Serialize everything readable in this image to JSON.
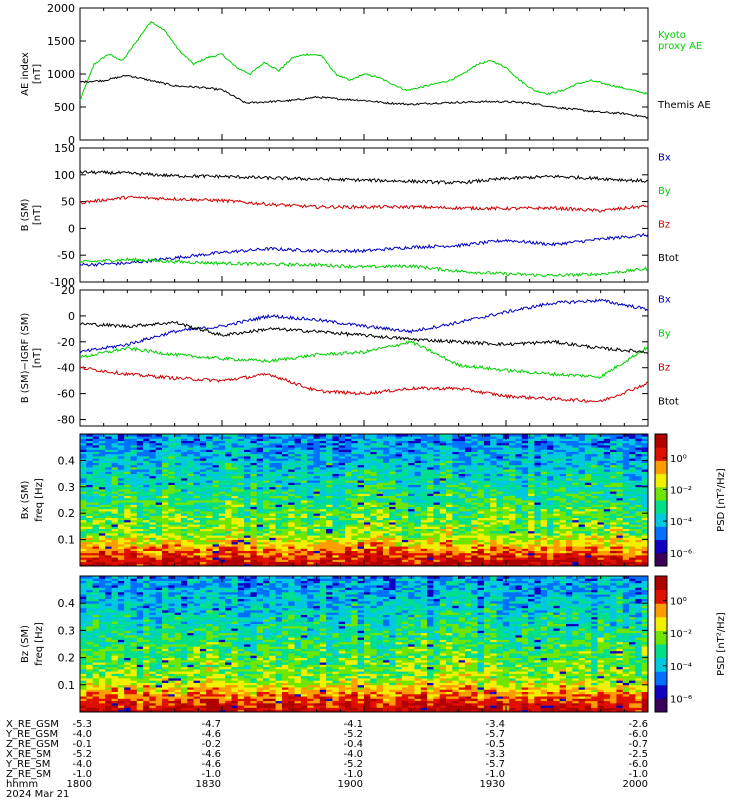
{
  "chart_data": [
    {
      "type": "line",
      "ylabel": "AE index",
      "yunit": "[nT]",
      "ylim": [
        0,
        2000
      ],
      "yticks": [
        "0",
        "500",
        "1000",
        "1500",
        "2000"
      ],
      "series": [
        {
          "name": "Kyoto proxy AE",
          "name_lines": [
            "Kyoto",
            "proxy AE"
          ],
          "color": "#00d000",
          "x": [
            0,
            3,
            6,
            9,
            12,
            15,
            18,
            21,
            24,
            27,
            30,
            33,
            36,
            39,
            42,
            45,
            48,
            51,
            54,
            57,
            60,
            63,
            66,
            69,
            72,
            75,
            78,
            81,
            84,
            87,
            90,
            93,
            96,
            99,
            102,
            105,
            108,
            111,
            114,
            117,
            120
          ],
          "values": [
            600,
            1150,
            1300,
            1200,
            1500,
            1800,
            1650,
            1350,
            1150,
            1250,
            1300,
            1100,
            1000,
            1180,
            1050,
            1250,
            1300,
            1280,
            1000,
            900,
            1000,
            950,
            850,
            750,
            800,
            850,
            900,
            1000,
            1150,
            1200,
            1100,
            900,
            750,
            700,
            750,
            850,
            900,
            850,
            800,
            750,
            700
          ]
        },
        {
          "name": "Themis AE",
          "name_lines": [
            "Themis AE"
          ],
          "color": "#000000",
          "x": [
            0,
            5,
            10,
            15,
            20,
            25,
            30,
            35,
            40,
            45,
            50,
            55,
            60,
            65,
            70,
            75,
            80,
            85,
            90,
            95,
            100,
            105,
            110,
            115,
            120
          ],
          "values": [
            880,
            900,
            980,
            900,
            820,
            800,
            760,
            560,
            580,
            600,
            650,
            620,
            600,
            560,
            540,
            560,
            570,
            580,
            580,
            560,
            500,
            460,
            420,
            400,
            340
          ]
        }
      ]
    },
    {
      "type": "line",
      "ylabel": "B (SM)",
      "yunit": "[nT]",
      "ylim": [
        -100,
        150
      ],
      "yticks": [
        "-100",
        "-50",
        "0",
        "50",
        "100",
        "150"
      ],
      "series": [
        {
          "name": "Bx",
          "color": "#0000c0",
          "x": [
            0,
            10,
            20,
            30,
            40,
            50,
            60,
            70,
            80,
            90,
            100,
            110,
            120
          ],
          "values": [
            -68,
            -65,
            -55,
            -45,
            -38,
            -42,
            -42,
            -35,
            -32,
            -22,
            -30,
            -20,
            -12
          ]
        },
        {
          "name": "By",
          "color": "#00d000",
          "x": [
            0,
            10,
            20,
            30,
            40,
            50,
            60,
            70,
            80,
            90,
            100,
            110,
            120
          ],
          "values": [
            -63,
            -58,
            -62,
            -65,
            -67,
            -68,
            -72,
            -70,
            -80,
            -85,
            -88,
            -85,
            -75
          ]
        },
        {
          "name": "Bz",
          "color": "#d00000",
          "x": [
            0,
            10,
            20,
            30,
            40,
            50,
            60,
            70,
            80,
            90,
            100,
            110,
            120
          ],
          "values": [
            48,
            58,
            55,
            52,
            45,
            40,
            40,
            40,
            38,
            37,
            38,
            33,
            42
          ]
        },
        {
          "name": "Btot",
          "color": "#000000",
          "x": [
            0,
            10,
            20,
            30,
            40,
            50,
            60,
            70,
            80,
            90,
            100,
            110,
            120
          ],
          "values": [
            105,
            103,
            98,
            97,
            94,
            92,
            90,
            88,
            85,
            93,
            97,
            93,
            88
          ]
        }
      ]
    },
    {
      "type": "line",
      "ylabel": "B (SM)−IGRF (SM)",
      "yunit": "[nT]",
      "ylim": [
        -85,
        20
      ],
      "yticks": [
        "-80",
        "-60",
        "-40",
        "-20",
        "0",
        "20"
      ],
      "series": [
        {
          "name": "Bx",
          "color": "#0000c0",
          "x": [
            0,
            10,
            20,
            30,
            40,
            50,
            60,
            70,
            80,
            90,
            100,
            110,
            120
          ],
          "values": [
            -28,
            -22,
            -12,
            -8,
            0,
            -3,
            -8,
            -12,
            -5,
            3,
            10,
            12,
            5
          ]
        },
        {
          "name": "By",
          "color": "#00d000",
          "x": [
            0,
            10,
            20,
            30,
            40,
            50,
            60,
            70,
            80,
            90,
            100,
            110,
            120
          ],
          "values": [
            -32,
            -25,
            -30,
            -33,
            -35,
            -30,
            -28,
            -20,
            -38,
            -42,
            -45,
            -47,
            -24
          ]
        },
        {
          "name": "Bz",
          "color": "#d00000",
          "x": [
            0,
            10,
            20,
            30,
            40,
            50,
            60,
            70,
            80,
            90,
            100,
            110,
            120
          ],
          "values": [
            -40,
            -45,
            -48,
            -50,
            -45,
            -58,
            -60,
            -56,
            -56,
            -62,
            -64,
            -66,
            -52
          ]
        },
        {
          "name": "Btot",
          "color": "#000000",
          "x": [
            0,
            10,
            20,
            30,
            40,
            50,
            60,
            70,
            80,
            90,
            100,
            110,
            120
          ],
          "values": [
            -6,
            -8,
            -5,
            -15,
            -10,
            -12,
            -15,
            -18,
            -20,
            -22,
            -20,
            -25,
            -28
          ]
        }
      ]
    },
    {
      "type": "heatmap",
      "ylabel": "Bx (SM)",
      "y2label": "freq [Hz]",
      "ylim": [
        0,
        0.5
      ],
      "yticks": [
        "0.1",
        "0.2",
        "0.3",
        "0.4"
      ],
      "colorbar": {
        "label": "PSD [nT²/Hz]",
        "ticks": [
          "10⁰",
          "10⁻²",
          "10⁻⁴",
          "10⁻⁶"
        ]
      },
      "colormap": [
        "#3a005a",
        "#1000c0",
        "#0070ff",
        "#00c8e0",
        "#00e08a",
        "#6ee600",
        "#f0f000",
        "#ff9c00",
        "#e01000",
        "#b00000"
      ]
    },
    {
      "type": "heatmap",
      "ylabel": "Bz (SM)",
      "y2label": "freq [Hz]",
      "ylim": [
        0,
        0.5
      ],
      "yticks": [
        "0.1",
        "0.2",
        "0.3",
        "0.4"
      ],
      "colorbar": {
        "label": "PSD [nT²/Hz]",
        "ticks": [
          "10⁰",
          "10⁻²",
          "10⁻⁴",
          "10⁻⁶"
        ]
      },
      "colormap": [
        "#3a005a",
        "#1000c0",
        "#0070ff",
        "#00c8e0",
        "#00e08a",
        "#6ee600",
        "#f0f000",
        "#ff9c00",
        "#e01000",
        "#b00000"
      ]
    }
  ],
  "ephemeris": {
    "rows": [
      {
        "label": "X_RE_GSM",
        "values": [
          "-5.3",
          "-4.7",
          "-4.1",
          "-3.4",
          "-2.6"
        ]
      },
      {
        "label": "Y_RE_GSM",
        "values": [
          "-4.0",
          "-4.6",
          "-5.2",
          "-5.7",
          "-6.0"
        ]
      },
      {
        "label": "Z_RE_GSM",
        "values": [
          "-0.1",
          "-0.2",
          "-0.4",
          "-0.5",
          "-0.7"
        ]
      },
      {
        "label": "X_RE_SM",
        "values": [
          "-5.2",
          "-4.6",
          "-4.0",
          "-3.3",
          "-2.5"
        ]
      },
      {
        "label": "Y_RE_SM",
        "values": [
          "-4.0",
          "-4.6",
          "-5.2",
          "-5.7",
          "-6.0"
        ]
      },
      {
        "label": "Z_RE_SM",
        "values": [
          "-1.0",
          "-1.0",
          "-1.0",
          "-1.0",
          "-1.0"
        ]
      },
      {
        "label": "hhmm",
        "values": [
          "1800",
          "1830",
          "1900",
          "1930",
          "2000"
        ]
      }
    ],
    "date": "2024 Mar 21"
  }
}
